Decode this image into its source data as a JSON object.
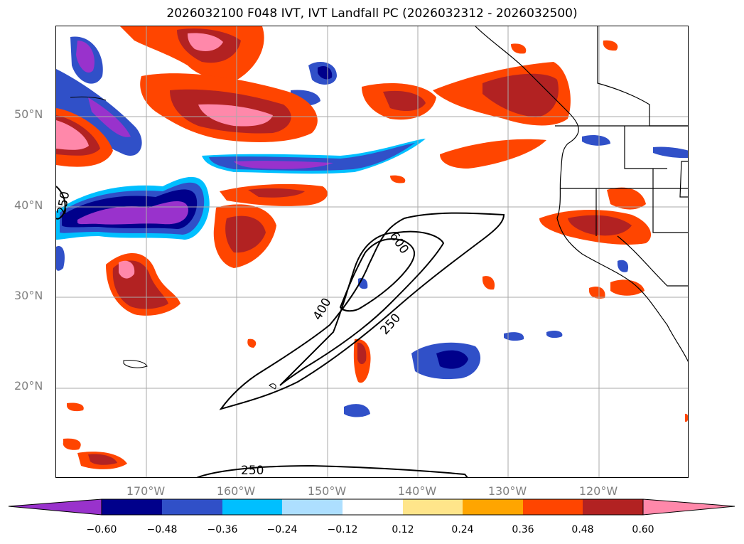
{
  "title": "2026032100 F048 IVT, IVT Landfall PC (2026032312 - 2026032500)",
  "latitude_labels": [
    "50°N",
    "40°N",
    "30°N",
    "20°N"
  ],
  "longitude_labels": [
    "170°W",
    "160°W",
    "150°W",
    "140°W",
    "130°W",
    "120°W"
  ],
  "map": {
    "lon_range": [
      -180,
      -110
    ],
    "lat_range": [
      10,
      60
    ],
    "grid": true,
    "ivt_contour_labels": [
      "250",
      "400",
      "600",
      "250",
      "250"
    ]
  },
  "colorbar": {
    "tick_labels": [
      "−0.60",
      "−0.48",
      "−0.36",
      "−0.24",
      "−0.12",
      "0.12",
      "0.24",
      "0.36",
      "0.48",
      "0.60"
    ],
    "colors": {
      "below": "#9932CC",
      "bins": [
        "#00008B",
        "#3050C8",
        "#00BFFF",
        "#ADDFFF",
        "#FFFFFF",
        "#FFE58A",
        "#FFA500",
        "#FF4500",
        "#B22222"
      ],
      "above": "#FF88AA"
    }
  },
  "colors": {
    "contour": "#000000",
    "grid": "#a9a9a9",
    "coastline": "#000000",
    "axis_label": "#808080"
  }
}
